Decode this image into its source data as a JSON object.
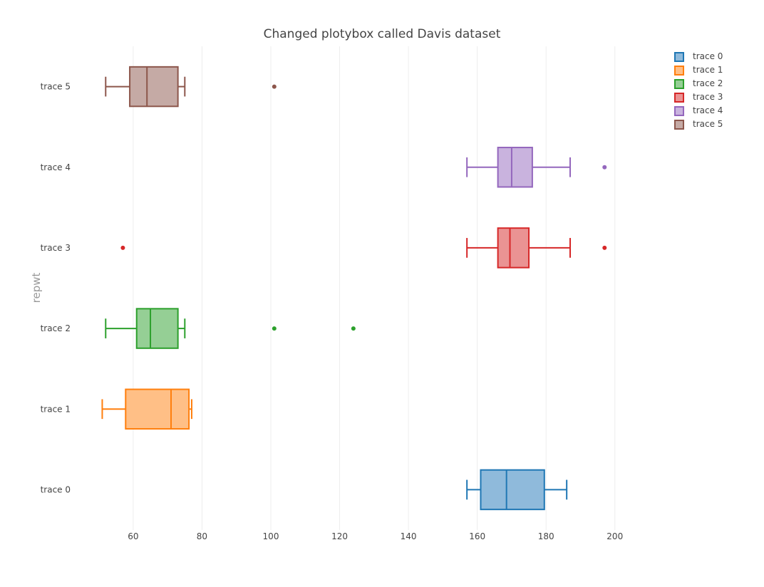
{
  "chart_data": {
    "type": "box",
    "orientation": "horizontal",
    "title": "Changed plotybox called Davis dataset",
    "xlabel": "",
    "ylabel": "repwt",
    "xlim": [
      42,
      216
    ],
    "xticks": [
      60,
      80,
      100,
      120,
      140,
      160,
      180,
      200
    ],
    "grid": true,
    "legend_position": "top-right",
    "categories": [
      "trace 0",
      "trace 1",
      "trace 2",
      "trace 3",
      "trace 4",
      "trace 5"
    ],
    "series": [
      {
        "name": "trace 0",
        "color": "#1f77b4",
        "fill": "#8fbadb",
        "whisker_low": 157,
        "q1": 161,
        "median": 168.5,
        "q3": 179.5,
        "whisker_high": 186,
        "outliers": []
      },
      {
        "name": "trace 1",
        "color": "#ff7f0e",
        "fill": "#ffbf86",
        "whisker_low": 51,
        "q1": 57.8,
        "median": 71,
        "q3": 76.2,
        "whisker_high": 77,
        "outliers": []
      },
      {
        "name": "trace 2",
        "color": "#2ca02c",
        "fill": "#95cf95",
        "whisker_low": 52,
        "q1": 61,
        "median": 65,
        "q3": 73,
        "whisker_high": 75,
        "outliers": [
          101,
          124
        ]
      },
      {
        "name": "trace 3",
        "color": "#d62728",
        "fill": "#ea9393",
        "whisker_low": 157,
        "q1": 166,
        "median": 169.5,
        "q3": 175,
        "whisker_high": 187,
        "outliers": [
          57,
          197
        ]
      },
      {
        "name": "trace 4",
        "color": "#9467bd",
        "fill": "#c9b3de",
        "whisker_low": 157,
        "q1": 166,
        "median": 170,
        "q3": 176,
        "whisker_high": 187,
        "outliers": [
          197
        ]
      },
      {
        "name": "trace 5",
        "color": "#8c564b",
        "fill": "#c5aaa5",
        "whisker_low": 52,
        "q1": 59,
        "median": 64,
        "q3": 73,
        "whisker_high": 75,
        "outliers": [
          101
        ]
      }
    ]
  }
}
